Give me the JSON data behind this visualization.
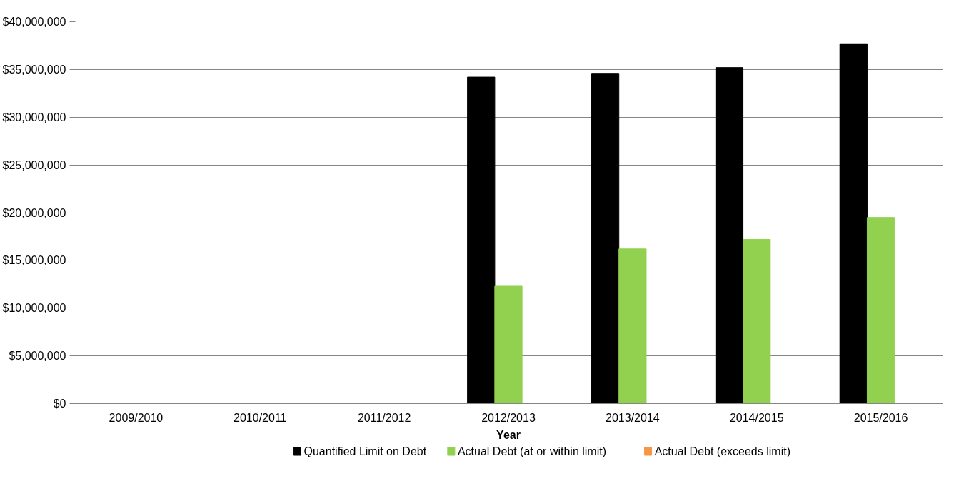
{
  "chart_data": {
    "type": "bar",
    "xlabel": "Year",
    "categories": [
      "2009/2010",
      "2010/2011",
      "2011/2012",
      "2012/2013",
      "2013/2014",
      "2014/2015",
      "2015/2016"
    ],
    "series": [
      {
        "name": "Quantified Limit on Debt",
        "color": "#000000",
        "values": [
          null,
          null,
          null,
          34200000,
          34600000,
          35200000,
          37700000
        ]
      },
      {
        "name": "Actual Debt (at or within limit)",
        "color": "#92d050",
        "values": [
          null,
          null,
          null,
          12300000,
          16200000,
          17200000,
          19500000
        ]
      },
      {
        "name": "Actual Debt (exceeds limit)",
        "color": "#f79646",
        "values": [
          null,
          null,
          null,
          null,
          null,
          null,
          null
        ]
      }
    ],
    "ylim": [
      0,
      40000000
    ],
    "yticks": [
      {
        "value": 0,
        "label": "$0"
      },
      {
        "value": 5000000,
        "label": "$5,000,000"
      },
      {
        "value": 10000000,
        "label": "$10,000,000"
      },
      {
        "value": 15000000,
        "label": "$15,000,000"
      },
      {
        "value": 20000000,
        "label": "$20,000,000"
      },
      {
        "value": 25000000,
        "label": "$25,000,000"
      },
      {
        "value": 30000000,
        "label": "$30,000,000"
      },
      {
        "value": 35000000,
        "label": "$35,000,000"
      },
      {
        "value": 40000000,
        "label": "$40,000,000"
      }
    ],
    "grid": "y",
    "legend": "bottom"
  }
}
